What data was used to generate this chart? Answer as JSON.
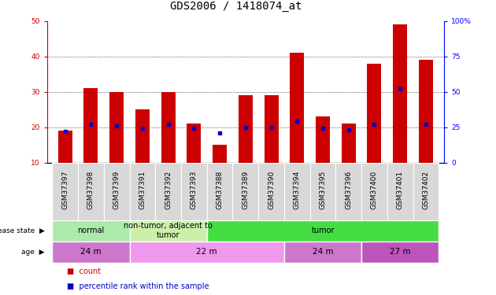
{
  "title": "GDS2006 / 1418074_at",
  "samples": [
    "GSM37397",
    "GSM37398",
    "GSM37399",
    "GSM37391",
    "GSM37392",
    "GSM37393",
    "GSM37388",
    "GSM37389",
    "GSM37390",
    "GSM37394",
    "GSM37395",
    "GSM37396",
    "GSM37400",
    "GSM37401",
    "GSM37402"
  ],
  "counts_all": [
    19,
    31,
    30,
    25,
    30,
    21,
    15,
    29,
    29,
    41,
    23,
    21,
    38,
    49,
    39
  ],
  "percentiles_all": [
    22,
    27,
    26,
    24,
    27,
    24,
    21,
    25,
    25,
    29,
    24,
    23,
    27,
    52,
    27
  ],
  "bar_color": "#cc0000",
  "dot_color": "#0000cc",
  "ylim_left": [
    10,
    50
  ],
  "ylim_right": [
    0,
    100
  ],
  "yticks_left": [
    10,
    20,
    30,
    40,
    50
  ],
  "yticks_right": [
    0,
    25,
    50,
    75,
    100
  ],
  "disease_state_groups": [
    {
      "label": "normal",
      "start": 0,
      "end": 3,
      "color": "#aaeaaa"
    },
    {
      "label": "non-tumor, adjacent to\ntumor",
      "start": 3,
      "end": 6,
      "color": "#ccf0aa"
    },
    {
      "label": "tumor",
      "start": 6,
      "end": 15,
      "color": "#44dd44"
    }
  ],
  "age_groups": [
    {
      "label": "24 m",
      "start": 0,
      "end": 3,
      "color": "#cc77cc"
    },
    {
      "label": "22 m",
      "start": 3,
      "end": 9,
      "color": "#ee99ee"
    },
    {
      "label": "24 m",
      "start": 9,
      "end": 12,
      "color": "#cc77cc"
    },
    {
      "label": "27 m",
      "start": 12,
      "end": 15,
      "color": "#bb55bb"
    }
  ],
  "title_fontsize": 10,
  "tick_fontsize": 6.5,
  "bar_width": 0.55
}
